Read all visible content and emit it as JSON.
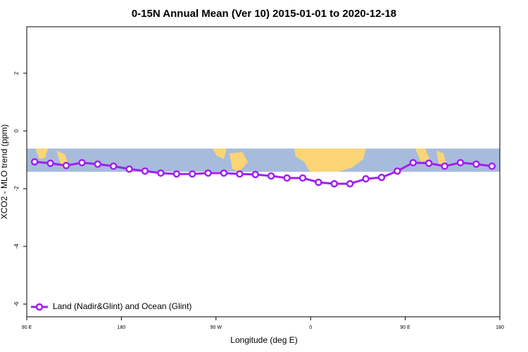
{
  "chart_data": {
    "type": "line",
    "title": "0-15N Annual Mean (Ver 10)   2015-01-01 to 2020-12-18",
    "x_label": "Longitude (deg E)",
    "y_label": "XCO2 - MLO trend (ppm)",
    "x": [
      97.5,
      112.5,
      127.5,
      142.5,
      157.5,
      172.5,
      187.5,
      202.5,
      217.5,
      232.5,
      247.5,
      262.5,
      277.5,
      292.5,
      307.5,
      322.5,
      337.5,
      352.5,
      367.5,
      382.5,
      397.5,
      412.5,
      427.5,
      442.5,
      457.5,
      472.5,
      487.5,
      502.5,
      517.5,
      532.5
    ],
    "series": [
      {
        "name": "Land (Nadir&Glint) and Ocean (Glint)",
        "color": "#a020f0",
        "values": [
          -1.07,
          -1.12,
          -1.2,
          -1.1,
          -1.15,
          -1.22,
          -1.32,
          -1.39,
          -1.46,
          -1.49,
          -1.49,
          -1.46,
          -1.46,
          -1.49,
          -1.51,
          -1.56,
          -1.63,
          -1.63,
          -1.78,
          -1.83,
          -1.83,
          -1.66,
          -1.61,
          -1.39,
          -1.1,
          -1.12,
          -1.22,
          -1.1,
          -1.15,
          -1.22
        ]
      }
    ],
    "xlim": [
      90,
      540
    ],
    "xticks": [
      {
        "value": 90,
        "label": "90 E"
      },
      180,
      {
        "value": 270,
        "label": "90 W"
      },
      {
        "value": 360,
        "label": "0"
      },
      {
        "value": 450,
        "label": "90 E"
      },
      {
        "value": 540,
        "label": "180"
      }
    ],
    "ylim": [
      -6.44,
      3.61
    ],
    "yticks": [
      -6,
      -4,
      -2,
      0,
      2
    ],
    "legend": "lower-left"
  }
}
